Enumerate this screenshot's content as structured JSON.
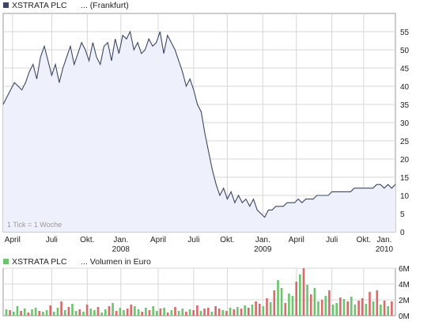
{
  "colors": {
    "price_line": "#3c4660",
    "price_fill": "#eef0fb",
    "grid": "#d7d7d7",
    "frame": "#9a9a9a",
    "vol_up": "#6cc46c",
    "vol_down": "#d86a6a",
    "legend_price": "#3c4660",
    "legend_volume": "#6cc46c"
  },
  "chart_data": [
    {
      "type": "line",
      "title": "XSTRATA PLC      ... (Frankfurt)",
      "note": "1 Tick = 1 Woche",
      "yticks": [
        0,
        5,
        10,
        15,
        20,
        25,
        30,
        35,
        40,
        45,
        50,
        55
      ],
      "ylim": [
        0,
        60
      ],
      "xlim": [
        0,
        105
      ],
      "grid": true,
      "xticks": [
        {
          "pos": 2.5,
          "label": "April",
          "year": ""
        },
        {
          "pos": 13,
          "label": "Juli",
          "year": ""
        },
        {
          "pos": 22.5,
          "label": "Okt.",
          "year": ""
        },
        {
          "pos": 31.5,
          "label": "Jan.",
          "year": "2008"
        },
        {
          "pos": 41.5,
          "label": "April",
          "year": ""
        },
        {
          "pos": 51,
          "label": "Juli",
          "year": ""
        },
        {
          "pos": 60,
          "label": "Okt.",
          "year": ""
        },
        {
          "pos": 69.5,
          "label": "Jan.",
          "year": "2009"
        },
        {
          "pos": 78.5,
          "label": "April",
          "year": ""
        },
        {
          "pos": 88,
          "label": "Juli",
          "year": ""
        },
        {
          "pos": 96.5,
          "label": "Okt.",
          "year": ""
        },
        {
          "pos": 105.5,
          "label": "Jan.",
          "year": "2010"
        }
      ],
      "x": [
        0,
        1,
        2,
        3,
        4,
        5,
        6,
        7,
        8,
        9,
        10,
        11,
        12,
        13,
        14,
        15,
        16,
        17,
        18,
        19,
        20,
        21,
        22,
        23,
        24,
        25,
        26,
        27,
        28,
        29,
        30,
        31,
        32,
        33,
        34,
        35,
        36,
        37,
        38,
        39,
        40,
        41,
        42,
        43,
        44,
        45,
        46,
        47,
        48,
        49,
        50,
        51,
        52,
        53,
        54,
        55,
        56,
        57,
        58,
        59,
        60,
        61,
        62,
        63,
        64,
        65,
        66,
        67,
        68,
        69,
        70,
        71,
        72,
        73,
        74,
        75,
        76,
        77,
        78,
        79,
        80,
        81,
        82,
        83,
        84,
        85,
        86,
        87,
        88,
        89,
        90,
        91,
        92,
        93,
        94,
        95,
        96,
        97,
        98,
        99,
        100,
        101,
        102,
        103,
        104,
        105
      ],
      "y": [
        35,
        37,
        39,
        41,
        40,
        39,
        41,
        44,
        46,
        42,
        48,
        51,
        47,
        43,
        46,
        41,
        45,
        48,
        51,
        46,
        49,
        52,
        50,
        47,
        52,
        48,
        46,
        51,
        52,
        47,
        53,
        49,
        54,
        53,
        55,
        50,
        52,
        49,
        50,
        53,
        51,
        52,
        55,
        49,
        54,
        52,
        50,
        47,
        44,
        40,
        42,
        39,
        35,
        33,
        27,
        22,
        17,
        13,
        10,
        12,
        9,
        11,
        8,
        10,
        8,
        9,
        7,
        9,
        6,
        5,
        4,
        6,
        6,
        7,
        7,
        7,
        8,
        8,
        8,
        9,
        8,
        9,
        9,
        9,
        10,
        10,
        10,
        10,
        11,
        11,
        11,
        11,
        11,
        11,
        12,
        12,
        12,
        12,
        12,
        12,
        13,
        13,
        12,
        13,
        12,
        13
      ]
    },
    {
      "type": "bar",
      "title": "XSTRATA PLC      ... Volumen in Euro",
      "yticks": [
        "0M",
        "2M",
        "4M",
        "6M"
      ],
      "ylim": [
        0,
        6
      ],
      "grid": true,
      "values": [
        0.8,
        0.7,
        0.5,
        1.2,
        0.6,
        0.9,
        0.4,
        0.8,
        1.0,
        0.6,
        0.5,
        0.7,
        1.3,
        0.5,
        1.0,
        1.8,
        0.7,
        1.1,
        1.5,
        0.6,
        0.8,
        0.5,
        1.4,
        0.9,
        0.7,
        1.1,
        0.4,
        0.8,
        1.2,
        1.6,
        0.6,
        1.0,
        0.7,
        0.9,
        1.4,
        1.2,
        0.8,
        0.5,
        1.0,
        0.7,
        1.2,
        0.6,
        0.9,
        1.0,
        0.4,
        0.7,
        1.1,
        0.6,
        0.9,
        0.5,
        0.8,
        0.7,
        1.3,
        0.6,
        0.9,
        1.0,
        0.5,
        1.2,
        0.9,
        0.7,
        0.6,
        1.0,
        0.8,
        1.1,
        0.9,
        1.3,
        1.0,
        1.4,
        1.8,
        1.5,
        1.2,
        2.2,
        1.7,
        3.2,
        4.5,
        3.5,
        1.6,
        2.8,
        2.5,
        4.3,
        5.2,
        6.0,
        3.9,
        2.7,
        3.5,
        1.8,
        2.0,
        2.5,
        3.2,
        1.4,
        1.6,
        2.3,
        2.1,
        1.8,
        2.4,
        1.4,
        1.9,
        2.2,
        1.5,
        3.0,
        1.8,
        3.2,
        1.4,
        1.9,
        1.2,
        1.8
      ],
      "up": [
        1,
        0,
        1,
        1,
        0,
        1,
        0,
        1,
        1,
        0,
        1,
        1,
        0,
        1,
        1,
        0,
        1,
        0,
        1,
        1,
        0,
        1,
        0,
        1,
        1,
        0,
        1,
        1,
        0,
        1,
        0,
        1,
        1,
        0,
        0,
        1,
        1,
        0,
        1,
        0,
        1,
        1,
        0,
        1,
        0,
        1,
        0,
        1,
        1,
        0,
        1,
        0,
        0,
        1,
        0,
        0,
        1,
        0,
        0,
        1,
        0,
        1,
        0,
        1,
        0,
        1,
        0,
        1,
        0,
        0,
        1,
        0,
        1,
        0,
        1,
        1,
        0,
        1,
        1,
        0,
        1,
        0,
        1,
        0,
        1,
        1,
        0,
        1,
        0,
        1,
        1,
        0,
        1,
        0,
        1,
        1,
        0,
        0,
        1,
        0,
        1,
        0,
        1,
        0,
        1,
        0
      ]
    }
  ]
}
